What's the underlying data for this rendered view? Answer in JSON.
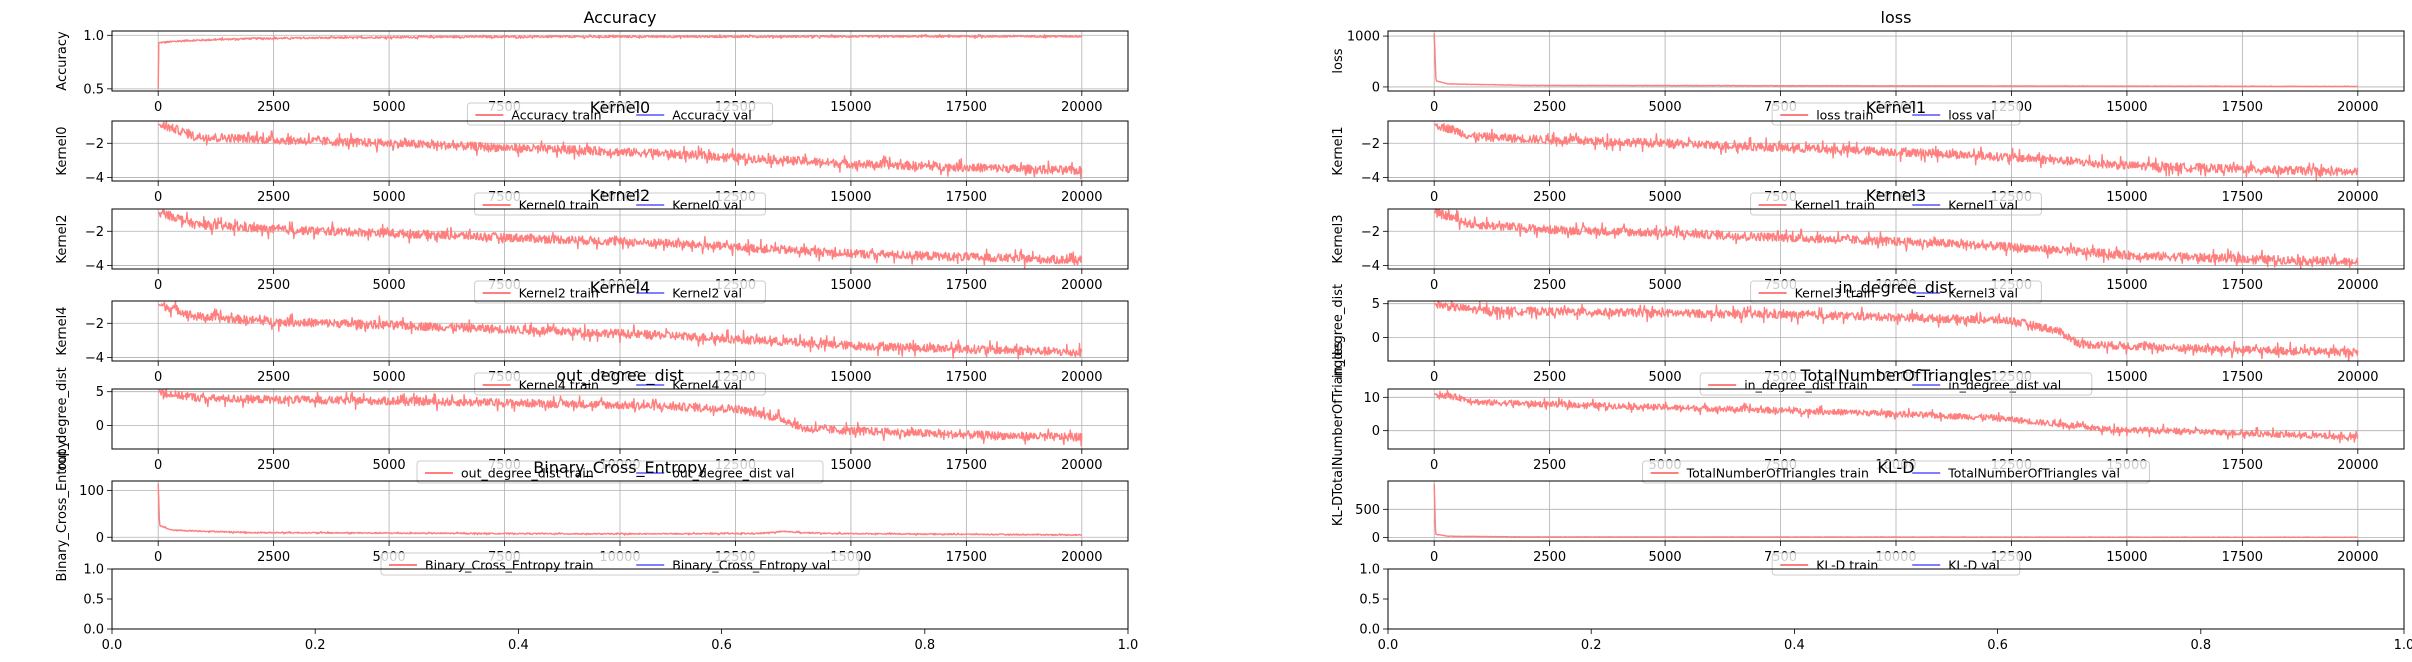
{
  "chart_data": [
    {
      "type": "line",
      "title": "Accuracy",
      "ylabel": "Accuracy",
      "xlim": [
        -1000,
        21000
      ],
      "xticks": [
        0,
        2500,
        5000,
        7500,
        10000,
        12500,
        15000,
        17500,
        20000
      ],
      "ylim": [
        0.48,
        1.04
      ],
      "yticks": [
        "0.5",
        "1.0"
      ],
      "ytick_values": [
        0.5,
        1.0
      ],
      "series": [
        {
          "name": "Accuracy train",
          "color": "#ff7f7f",
          "profile": [
            [
              0,
              0.5
            ],
            [
              8,
              0.93
            ],
            [
              600,
              0.95
            ],
            [
              2000,
              0.97
            ],
            [
              6000,
              0.985
            ],
            [
              20000,
              0.99
            ]
          ],
          "noise": 0.008
        },
        {
          "name": "Accuracy val",
          "color": "#7f7fff",
          "profile": []
        }
      ]
    },
    {
      "type": "line",
      "title": "loss",
      "ylabel": "loss",
      "xlim": [
        -1000,
        21000
      ],
      "xticks": [
        0,
        2500,
        5000,
        7500,
        10000,
        12500,
        15000,
        17500,
        20000
      ],
      "ylim": [
        -80,
        1100
      ],
      "yticks": [
        "0",
        "1000"
      ],
      "ytick_values": [
        0,
        1000
      ],
      "series": [
        {
          "name": "loss train",
          "color": "#ff7f7f",
          "profile": [
            [
              0,
              1050
            ],
            [
              40,
              120
            ],
            [
              300,
              60
            ],
            [
              2000,
              30
            ],
            [
              20000,
              10
            ]
          ],
          "noise": 3
        },
        {
          "name": "loss val",
          "color": "#7f7fff",
          "profile": []
        }
      ]
    },
    {
      "type": "line",
      "title": "Kernel0",
      "ylabel": "Kernel0",
      "xlim": [
        -1000,
        21000
      ],
      "xticks": [
        0,
        2500,
        5000,
        7500,
        10000,
        12500,
        15000,
        17500,
        20000
      ],
      "ylim": [
        -4.2,
        -0.7
      ],
      "yticks": [
        "−2",
        "−4"
      ],
      "ytick_values": [
        -2,
        -4
      ],
      "series": [
        {
          "name": "Kernel0 train",
          "color": "#ff7f7f",
          "profile": [
            [
              0,
              -0.9
            ],
            [
              400,
              -1.2
            ],
            [
              800,
              -1.6
            ],
            [
              2500,
              -1.8
            ],
            [
              5000,
              -2.0
            ],
            [
              8000,
              -2.3
            ],
            [
              11000,
              -2.6
            ],
            [
              13000,
              -2.9
            ],
            [
              15000,
              -3.2
            ],
            [
              17500,
              -3.4
            ],
            [
              20000,
              -3.6
            ]
          ],
          "noise": 0.25
        },
        {
          "name": "Kernel0 val",
          "color": "#7f7fff",
          "profile": []
        }
      ]
    },
    {
      "type": "line",
      "title": "Kernel1",
      "ylabel": "Kernel1",
      "xlim": [
        -1000,
        21000
      ],
      "xticks": [
        0,
        2500,
        5000,
        7500,
        10000,
        12500,
        15000,
        17500,
        20000
      ],
      "ylim": [
        -4.2,
        -0.7
      ],
      "yticks": [
        "−2",
        "−4"
      ],
      "ytick_values": [
        -2,
        -4
      ],
      "series": [
        {
          "name": "Kernel1 train",
          "color": "#ff7f7f",
          "profile": [
            [
              0,
              -0.9
            ],
            [
              400,
              -1.2
            ],
            [
              800,
              -1.6
            ],
            [
              2500,
              -1.8
            ],
            [
              5000,
              -2.0
            ],
            [
              8000,
              -2.3
            ],
            [
              11000,
              -2.6
            ],
            [
              13000,
              -2.9
            ],
            [
              15000,
              -3.3
            ],
            [
              17500,
              -3.5
            ],
            [
              20000,
              -3.7
            ]
          ],
          "noise": 0.25
        },
        {
          "name": "Kernel1 val",
          "color": "#7f7fff",
          "profile": []
        }
      ]
    },
    {
      "type": "line",
      "title": "Kernel2",
      "ylabel": "Kernel2",
      "xlim": [
        -1000,
        21000
      ],
      "xticks": [
        0,
        2500,
        5000,
        7500,
        10000,
        12500,
        15000,
        17500,
        20000
      ],
      "ylim": [
        -4.2,
        -0.7
      ],
      "yticks": [
        "−2",
        "−4"
      ],
      "ytick_values": [
        -2,
        -4
      ],
      "series": [
        {
          "name": "Kernel2 train",
          "color": "#ff7f7f",
          "profile": [
            [
              0,
              -0.9
            ],
            [
              400,
              -1.2
            ],
            [
              800,
              -1.6
            ],
            [
              2500,
              -1.9
            ],
            [
              5000,
              -2.1
            ],
            [
              8000,
              -2.4
            ],
            [
              11000,
              -2.7
            ],
            [
              13000,
              -3.0
            ],
            [
              15000,
              -3.3
            ],
            [
              17500,
              -3.5
            ],
            [
              20000,
              -3.7
            ]
          ],
          "noise": 0.25
        },
        {
          "name": "Kernel2 val",
          "color": "#7f7fff",
          "profile": []
        }
      ]
    },
    {
      "type": "line",
      "title": "Kernel3",
      "ylabel": "Kernel3",
      "xlim": [
        -1000,
        21000
      ],
      "xticks": [
        0,
        2500,
        5000,
        7500,
        10000,
        12500,
        15000,
        17500,
        20000
      ],
      "ylim": [
        -4.2,
        -0.7
      ],
      "yticks": [
        "−2",
        "−4"
      ],
      "ytick_values": [
        -2,
        -4
      ],
      "series": [
        {
          "name": "Kernel3 train",
          "color": "#ff7f7f",
          "profile": [
            [
              0,
              -0.9
            ],
            [
              400,
              -1.2
            ],
            [
              800,
              -1.6
            ],
            [
              2500,
              -1.9
            ],
            [
              5000,
              -2.1
            ],
            [
              8000,
              -2.4
            ],
            [
              11000,
              -2.7
            ],
            [
              13000,
              -3.0
            ],
            [
              15000,
              -3.4
            ],
            [
              17500,
              -3.6
            ],
            [
              20000,
              -3.8
            ]
          ],
          "noise": 0.25
        },
        {
          "name": "Kernel3 val",
          "color": "#7f7fff",
          "profile": []
        }
      ]
    },
    {
      "type": "line",
      "title": "Kernel4",
      "ylabel": "Kernel4",
      "xlim": [
        -1000,
        21000
      ],
      "xticks": [
        0,
        2500,
        5000,
        7500,
        10000,
        12500,
        15000,
        17500,
        20000
      ],
      "ylim": [
        -4.2,
        -0.7
      ],
      "yticks": [
        "−2",
        "−4"
      ],
      "ytick_values": [
        -2,
        -4
      ],
      "series": [
        {
          "name": "Kernel4 train",
          "color": "#ff7f7f",
          "profile": [
            [
              0,
              -0.9
            ],
            [
              400,
              -1.2
            ],
            [
              800,
              -1.6
            ],
            [
              2500,
              -1.9
            ],
            [
              5000,
              -2.1
            ],
            [
              8000,
              -2.4
            ],
            [
              11000,
              -2.7
            ],
            [
              13000,
              -3.0
            ],
            [
              15000,
              -3.3
            ],
            [
              17500,
              -3.5
            ],
            [
              20000,
              -3.7
            ]
          ],
          "noise": 0.25
        },
        {
          "name": "Kernel4 val",
          "color": "#7f7fff",
          "profile": []
        }
      ]
    },
    {
      "type": "line",
      "title": "in_degree_dist",
      "ylabel": "in_degree_dist",
      "xlim": [
        -1000,
        21000
      ],
      "xticks": [
        0,
        2500,
        5000,
        7500,
        10000,
        12500,
        15000,
        17500,
        20000
      ],
      "ylim": [
        -3.5,
        5.4
      ],
      "yticks": [
        "5",
        "0"
      ],
      "ytick_values": [
        5,
        0
      ],
      "series": [
        {
          "name": "in_degree_dist train",
          "color": "#ff7f7f",
          "profile": [
            [
              0,
              5.0
            ],
            [
              300,
              4.6
            ],
            [
              1000,
              4.0
            ],
            [
              5000,
              3.6
            ],
            [
              9000,
              3.2
            ],
            [
              12500,
              2.5
            ],
            [
              13500,
              1.0
            ],
            [
              14000,
              -1.0
            ],
            [
              17000,
              -1.8
            ],
            [
              20000,
              -2.2
            ]
          ],
          "noise": 0.6
        },
        {
          "name": "in_degree_dist val",
          "color": "#7f7fff",
          "profile": []
        }
      ]
    },
    {
      "type": "line",
      "title": "out_degree_dist",
      "ylabel": "out_degree_dist",
      "xlim": [
        -1000,
        21000
      ],
      "xticks": [
        0,
        2500,
        5000,
        7500,
        10000,
        12500,
        15000,
        17500,
        20000
      ],
      "ylim": [
        -3.5,
        5.4
      ],
      "yticks": [
        "5",
        "0"
      ],
      "ytick_values": [
        5,
        0
      ],
      "series": [
        {
          "name": "out_degree_dist train",
          "color": "#ff7f7f",
          "profile": [
            [
              0,
              5.0
            ],
            [
              300,
              4.6
            ],
            [
              1000,
              4.0
            ],
            [
              5000,
              3.6
            ],
            [
              9000,
              3.2
            ],
            [
              12500,
              2.5
            ],
            [
              13500,
              1.0
            ],
            [
              14000,
              -0.5
            ],
            [
              17000,
              -1.3
            ],
            [
              20000,
              -1.8
            ]
          ],
          "noise": 0.6
        },
        {
          "name": "out_degree_dist val",
          "color": "#7f7fff",
          "profile": []
        }
      ]
    },
    {
      "type": "line",
      "title": "TotalNumberOfTriangles",
      "ylabel": "TotalNumberOfTriangles",
      "xlim": [
        -1000,
        21000
      ],
      "xticks": [
        0,
        2500,
        5000,
        7500,
        10000,
        12500,
        15000,
        17500,
        20000
      ],
      "ylim": [
        -5.5,
        12.5
      ],
      "yticks": [
        "10",
        "0"
      ],
      "ytick_values": [
        10,
        0
      ],
      "series": [
        {
          "name": "TotalNumberOfTriangles train",
          "color": "#ff7f7f",
          "profile": [
            [
              0,
              11
            ],
            [
              500,
              10
            ],
            [
              1000,
              8.5
            ],
            [
              5000,
              7
            ],
            [
              9000,
              5.5
            ],
            [
              12000,
              4
            ],
            [
              13500,
              2
            ],
            [
              14500,
              0.5
            ],
            [
              17000,
              -0.5
            ],
            [
              20000,
              -2
            ]
          ],
          "noise": 0.9
        },
        {
          "name": "TotalNumberOfTriangles val",
          "color": "#7f7fff",
          "profile": []
        }
      ]
    },
    {
      "type": "line",
      "title": "Binary_Cross_Entropy",
      "ylabel": "Binary_Cross_Entropy",
      "xlim": [
        -1000,
        21000
      ],
      "xticks": [
        0,
        2500,
        5000,
        7500,
        10000,
        12500,
        15000,
        17500,
        20000
      ],
      "ylim": [
        -8,
        120
      ],
      "yticks": [
        "100",
        "0"
      ],
      "ytick_values": [
        100,
        0
      ],
      "series": [
        {
          "name": "Binary_Cross_Entropy train",
          "color": "#ff7f7f",
          "profile": [
            [
              0,
              115
            ],
            [
              30,
              25
            ],
            [
              300,
              15
            ],
            [
              2000,
              10
            ],
            [
              10000,
              7
            ],
            [
              13000,
              8
            ],
            [
              13500,
              12
            ],
            [
              14500,
              8
            ],
            [
              20000,
              5
            ]
          ],
          "noise": 1.2
        },
        {
          "name": "Binary_Cross_Entropy val",
          "color": "#7f7fff",
          "profile": []
        }
      ]
    },
    {
      "type": "line",
      "title": "KL-D",
      "ylabel": "KL-D",
      "xlim": [
        -1000,
        21000
      ],
      "xticks": [
        0,
        2500,
        5000,
        7500,
        10000,
        12500,
        15000,
        17500,
        20000
      ],
      "ylim": [
        -60,
        1000
      ],
      "yticks": [
        "500",
        "0"
      ],
      "ytick_values": [
        500,
        0
      ],
      "series": [
        {
          "name": "KL-D train",
          "color": "#ff7f7f",
          "profile": [
            [
              0,
              950
            ],
            [
              30,
              60
            ],
            [
              300,
              25
            ],
            [
              2000,
              12
            ],
            [
              20000,
              6
            ]
          ],
          "noise": 2.5
        },
        {
          "name": "KL-D val",
          "color": "#7f7fff",
          "profile": []
        }
      ]
    },
    {
      "type": "line",
      "title": "",
      "ylabel": "",
      "xlim": [
        0,
        1
      ],
      "xticks": [
        "0.0",
        "0.2",
        "0.4",
        "0.6",
        "0.8",
        "1.0"
      ],
      "xtick_values": [
        0,
        0.2,
        0.4,
        0.6,
        0.8,
        1.0
      ],
      "ylim": [
        0,
        1
      ],
      "yticks": [
        "1.0",
        "0.5",
        "0.0"
      ],
      "ytick_values": [
        1.0,
        0.5,
        0.0
      ],
      "series": []
    },
    {
      "type": "line",
      "title": "",
      "ylabel": "",
      "xlim": [
        0,
        1
      ],
      "xticks": [
        "0.0",
        "0.2",
        "0.4",
        "0.6",
        "0.8",
        "1.0"
      ],
      "xtick_values": [
        0,
        0.2,
        0.4,
        0.6,
        0.8,
        1.0
      ],
      "ylim": [
        0,
        1
      ],
      "yticks": [
        "1.0",
        "0.5",
        "0.0"
      ],
      "ytick_values": [
        1.0,
        0.5,
        0.0
      ],
      "series": []
    }
  ]
}
